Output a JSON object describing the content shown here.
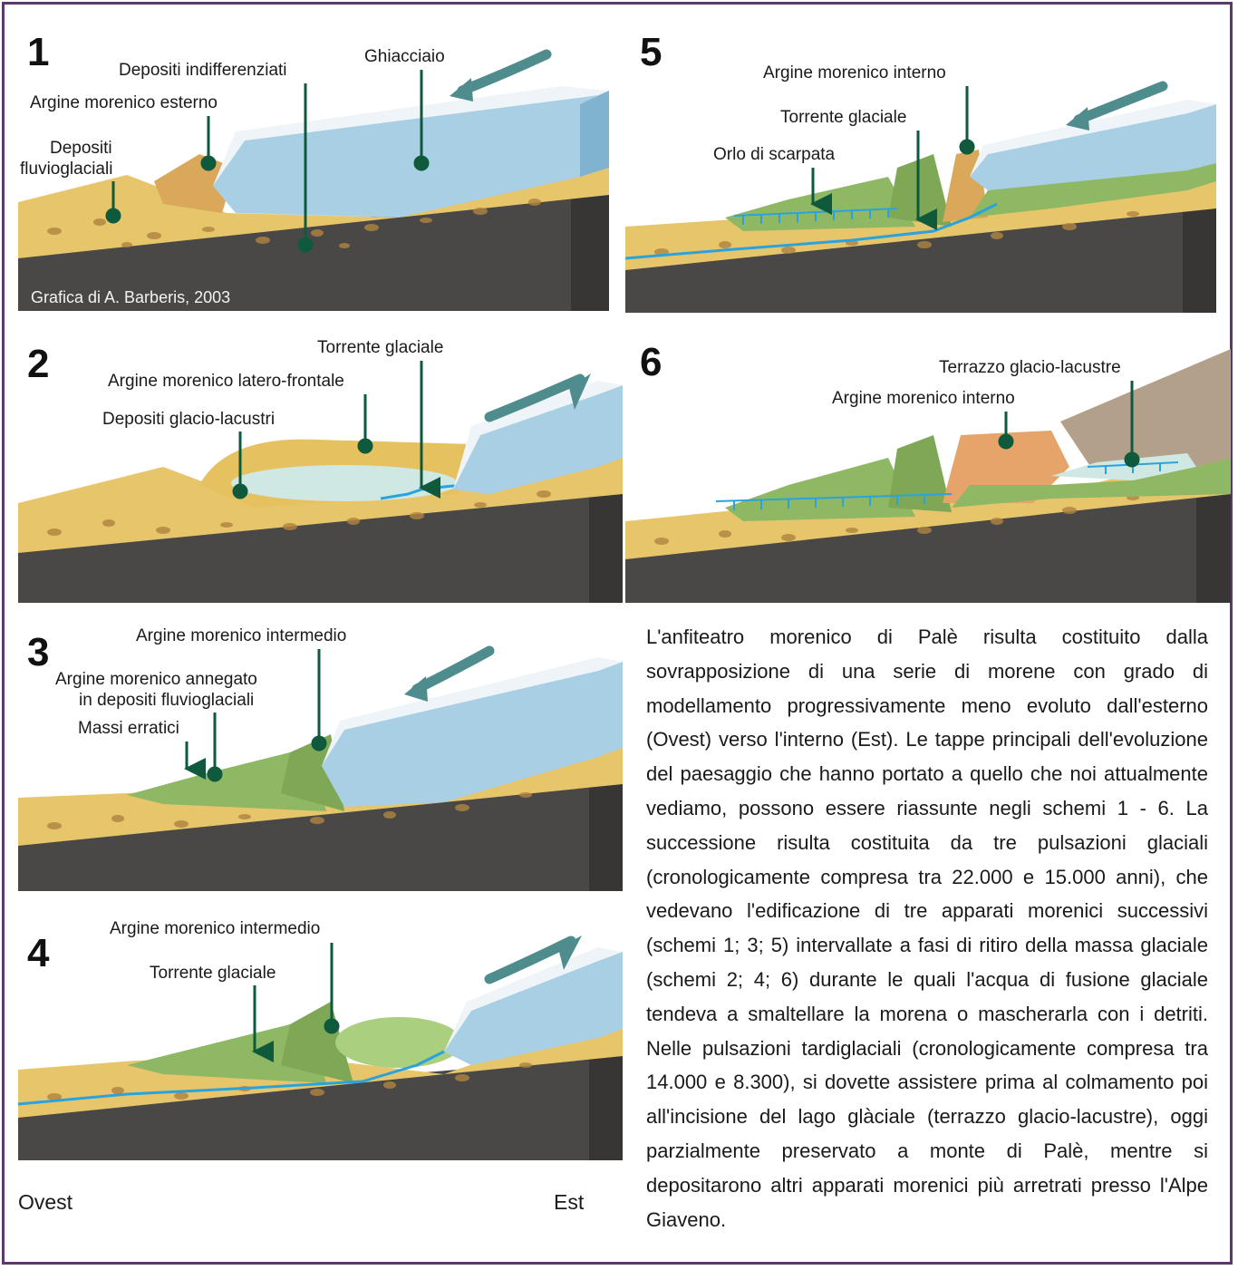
{
  "panels": [
    {
      "number": "1",
      "labels": {
        "glacier": "Ghiacciaio",
        "undiff": "Depositi indifferenziati",
        "outer_moraine": "Argine morenico esterno",
        "fluvio_line1": "Depositi",
        "fluvio_line2": "fluvioglaciali"
      },
      "credit": "Grafica di  A. Barberis, 2003"
    },
    {
      "number": "2",
      "labels": {
        "stream": "Torrente glaciale",
        "lateral_moraine": "Argine morenico latero-frontale",
        "lake_deposits": "Depositi glacio-lacustri"
      }
    },
    {
      "number": "3",
      "labels": {
        "intermediate": "Argine morenico intermedio",
        "drowned_line1": "Argine morenico annegato",
        "drowned_line2": "in depositi fluvioglaciali",
        "erratics": "Massi erratici"
      }
    },
    {
      "number": "4",
      "labels": {
        "intermediate": "Argine morenico intermedio",
        "stream": "Torrente glaciale"
      }
    },
    {
      "number": "5",
      "labels": {
        "inner_moraine": "Argine morenico interno",
        "stream": "Torrente glaciale",
        "scarp": "Orlo di scarpata"
      }
    },
    {
      "number": "6",
      "labels": {
        "terrace": "Terrazzo glacio-lacustre",
        "inner_moraine": "Argine morenico interno"
      }
    }
  ],
  "directions": {
    "west": "Ovest",
    "east": "Est"
  },
  "description": "L'anfiteatro morenico di Palè risulta costituito dalla sovrapposizione di una serie di morene con grado di modellamento progressivamente meno evoluto dall'esterno (Ovest) verso l'interno (Est). Le tappe principali dell'evoluzione del paesaggio che hanno portato a quello che noi attualmente vediamo, possono essere riassunte negli schemi 1 - 6. La successione risulta costituita da tre pulsazioni glaciali (cronologicamente compresa tra 22.000 e 15.000 anni), che vedevano l'edificazione di tre apparati morenici successivi (schemi 1; 3; 5) intervallate a fasi di ritiro della massa glaciale (schemi 2; 4; 6) durante le quali l'acqua di fusione glaciale tendeva a smaltellare la morena o mascherarla con i detriti.  Nelle pulsazioni tardiglaciali (cronologicamente compresa tra 14.000 e 8.300), si dovette assistere prima al colmamento poi all'incisione del lago glàciale (terrazzo glacio-lacustre), oggi parzialmente preservato a monte di Palè, mentre si depositarono altri apparati morenici più arretrati presso l'Alpe Giaveno.",
  "colors": {
    "bedrock": "#4a4847",
    "deposit": "#e7c56a",
    "moraine_green": "#8fb865",
    "glacier": "#a8cfe3",
    "ice_top": "#eef4f8",
    "water": "#2aa3dc",
    "arrow": "#4e8c8e",
    "pointer": "#0f5a3c",
    "frame": "#5a3a68"
  }
}
